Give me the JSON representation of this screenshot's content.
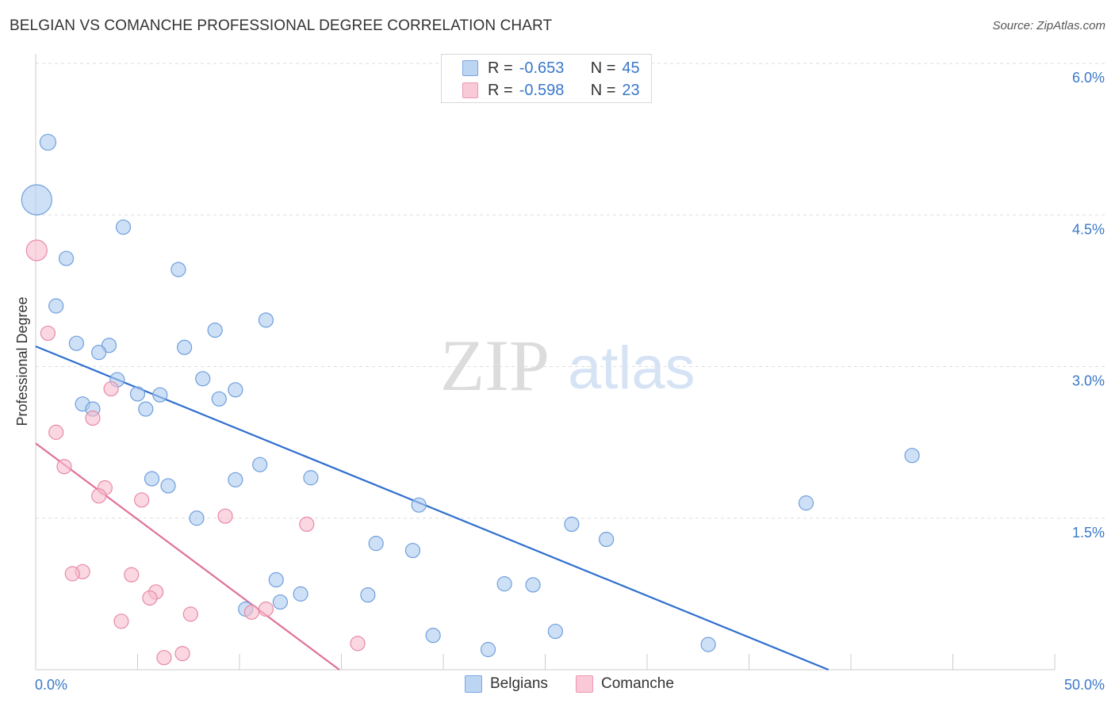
{
  "header": {
    "title": "BELGIAN VS COMANCHE PROFESSIONAL DEGREE CORRELATION CHART",
    "source": "Source: ZipAtlas.com"
  },
  "watermark": {
    "part1": "ZIP",
    "part2": "atlas"
  },
  "colors": {
    "belgian_fill": "#aecbf0",
    "belgian_stroke": "#6f9fdc",
    "belgian_line": "#2f6fcf",
    "comanche_fill": "#f7bccd",
    "comanche_stroke": "#e88aa8",
    "comanche_line": "#e0709a",
    "axis_label": "#3a78c9",
    "grid": "#dddddd"
  },
  "legend": {
    "rows": [
      {
        "r_label": "R =",
        "r_value": "-0.653",
        "n_label": "N =",
        "n_value": "45"
      },
      {
        "r_label": "R =",
        "r_value": "-0.598",
        "n_label": "N =",
        "n_value": "23"
      }
    ]
  },
  "bottom_legend": {
    "belgians": "Belgians",
    "comanche": "Comanche"
  },
  "chart_data": {
    "type": "scatter",
    "title": "BELGIAN VS COMANCHE PROFESSIONAL DEGREE CORRELATION CHART",
    "ylabel": "Professional Degree",
    "xlabel": "",
    "xlim": [
      0,
      50
    ],
    "ylim": [
      0,
      6.2
    ],
    "x_tick_labels": [
      "0.0%",
      "50.0%"
    ],
    "y_ticks": [
      1.5,
      3.0,
      4.5,
      6.0
    ],
    "y_tick_labels": [
      "1.5%",
      "3.0%",
      "4.5%",
      "6.0%"
    ],
    "series": [
      {
        "name": "Belgians",
        "r": -0.653,
        "n": 45,
        "trend": {
          "x": [
            0,
            38.9
          ],
          "y": [
            3.2,
            0.0
          ]
        },
        "points": [
          {
            "x": 0.6,
            "y": 5.22,
            "s": 10
          },
          {
            "x": 0.05,
            "y": 4.65,
            "s": 19
          },
          {
            "x": 4.3,
            "y": 4.38,
            "s": 9
          },
          {
            "x": 1.5,
            "y": 4.07,
            "s": 9
          },
          {
            "x": 7.0,
            "y": 3.96,
            "s": 9
          },
          {
            "x": 1.0,
            "y": 3.6,
            "s": 9
          },
          {
            "x": 11.3,
            "y": 3.46,
            "s": 9
          },
          {
            "x": 8.8,
            "y": 3.36,
            "s": 9
          },
          {
            "x": 2.0,
            "y": 3.23,
            "s": 9
          },
          {
            "x": 3.6,
            "y": 3.21,
            "s": 9
          },
          {
            "x": 7.3,
            "y": 3.19,
            "s": 9
          },
          {
            "x": 3.1,
            "y": 3.14,
            "s": 9
          },
          {
            "x": 8.2,
            "y": 2.88,
            "s": 9
          },
          {
            "x": 4.0,
            "y": 2.87,
            "s": 9
          },
          {
            "x": 9.8,
            "y": 2.77,
            "s": 9
          },
          {
            "x": 5.0,
            "y": 2.73,
            "s": 9
          },
          {
            "x": 6.1,
            "y": 2.72,
            "s": 9
          },
          {
            "x": 9.0,
            "y": 2.68,
            "s": 9
          },
          {
            "x": 2.3,
            "y": 2.63,
            "s": 9
          },
          {
            "x": 2.8,
            "y": 2.58,
            "s": 9
          },
          {
            "x": 5.4,
            "y": 2.58,
            "s": 9
          },
          {
            "x": 43.0,
            "y": 2.12,
            "s": 9
          },
          {
            "x": 11.0,
            "y": 2.03,
            "s": 9
          },
          {
            "x": 13.5,
            "y": 1.9,
            "s": 9
          },
          {
            "x": 5.7,
            "y": 1.89,
            "s": 9
          },
          {
            "x": 9.8,
            "y": 1.88,
            "s": 9
          },
          {
            "x": 6.5,
            "y": 1.82,
            "s": 9
          },
          {
            "x": 37.8,
            "y": 1.65,
            "s": 9
          },
          {
            "x": 18.8,
            "y": 1.63,
            "s": 9
          },
          {
            "x": 7.9,
            "y": 1.5,
            "s": 9
          },
          {
            "x": 26.3,
            "y": 1.44,
            "s": 9
          },
          {
            "x": 28.0,
            "y": 1.29,
            "s": 9
          },
          {
            "x": 16.7,
            "y": 1.25,
            "s": 9
          },
          {
            "x": 18.5,
            "y": 1.18,
            "s": 9
          },
          {
            "x": 11.8,
            "y": 0.89,
            "s": 9
          },
          {
            "x": 23.0,
            "y": 0.85,
            "s": 9
          },
          {
            "x": 24.4,
            "y": 0.84,
            "s": 9
          },
          {
            "x": 13.0,
            "y": 0.75,
            "s": 9
          },
          {
            "x": 16.3,
            "y": 0.74,
            "s": 9
          },
          {
            "x": 12.0,
            "y": 0.67,
            "s": 9
          },
          {
            "x": 10.3,
            "y": 0.6,
            "s": 9
          },
          {
            "x": 25.5,
            "y": 0.38,
            "s": 9
          },
          {
            "x": 19.5,
            "y": 0.34,
            "s": 9
          },
          {
            "x": 33.0,
            "y": 0.25,
            "s": 9
          },
          {
            "x": 22.2,
            "y": 0.2,
            "s": 9
          }
        ]
      },
      {
        "name": "Comanche",
        "r": -0.598,
        "n": 23,
        "trend": {
          "x": [
            0,
            14.9
          ],
          "y": [
            2.24,
            0.0
          ]
        },
        "points": [
          {
            "x": 0.05,
            "y": 4.15,
            "s": 13
          },
          {
            "x": 0.6,
            "y": 3.33,
            "s": 9
          },
          {
            "x": 3.7,
            "y": 2.78,
            "s": 9
          },
          {
            "x": 2.8,
            "y": 2.49,
            "s": 9
          },
          {
            "x": 1.0,
            "y": 2.35,
            "s": 9
          },
          {
            "x": 1.4,
            "y": 2.01,
            "s": 9
          },
          {
            "x": 3.4,
            "y": 1.8,
            "s": 9
          },
          {
            "x": 3.1,
            "y": 1.72,
            "s": 9
          },
          {
            "x": 5.2,
            "y": 1.68,
            "s": 9
          },
          {
            "x": 9.3,
            "y": 1.52,
            "s": 9
          },
          {
            "x": 13.3,
            "y": 1.44,
            "s": 9
          },
          {
            "x": 2.3,
            "y": 0.97,
            "s": 9
          },
          {
            "x": 1.8,
            "y": 0.95,
            "s": 9
          },
          {
            "x": 4.7,
            "y": 0.94,
            "s": 9
          },
          {
            "x": 5.9,
            "y": 0.77,
            "s": 9
          },
          {
            "x": 5.6,
            "y": 0.71,
            "s": 9
          },
          {
            "x": 11.3,
            "y": 0.6,
            "s": 9
          },
          {
            "x": 10.6,
            "y": 0.57,
            "s": 9
          },
          {
            "x": 7.6,
            "y": 0.55,
            "s": 9
          },
          {
            "x": 4.2,
            "y": 0.48,
            "s": 9
          },
          {
            "x": 15.8,
            "y": 0.26,
            "s": 9
          },
          {
            "x": 7.2,
            "y": 0.16,
            "s": 9
          },
          {
            "x": 6.3,
            "y": 0.12,
            "s": 9
          }
        ]
      }
    ]
  }
}
